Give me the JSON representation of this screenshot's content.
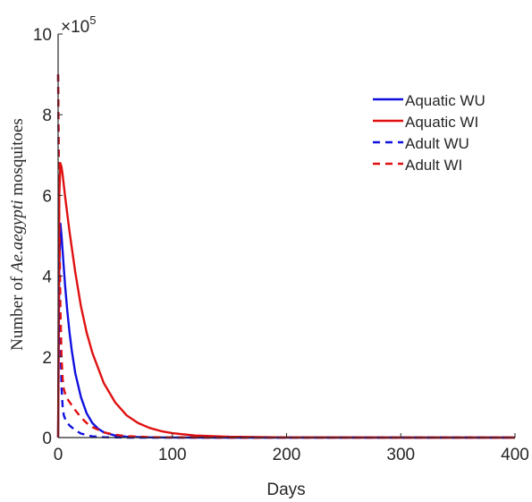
{
  "chart_data": {
    "type": "line",
    "title": "",
    "xlabel": "Days",
    "ylabel_prefix": "Number of ",
    "ylabel_italic": "Ae.aegypti",
    "ylabel_suffix": " mosquitoes",
    "y_exponent_base": "×10",
    "y_exponent_power": "5",
    "xlim": [
      0,
      400
    ],
    "ylim": [
      0,
      10
    ],
    "xticks": [
      0,
      100,
      200,
      300,
      400
    ],
    "yticks": [
      0,
      2,
      4,
      6,
      8,
      10
    ],
    "xtick_labels": [
      "0",
      "100",
      "200",
      "300",
      "400"
    ],
    "ytick_labels": [
      "0",
      "2",
      "4",
      "6",
      "8",
      "10"
    ],
    "grid": false,
    "legend_position": "top-right",
    "series": [
      {
        "name": "Aquatic WU",
        "color": "#1010e0",
        "dash": "solid",
        "x": [
          0,
          1,
          2,
          3,
          4,
          5,
          6,
          8,
          10,
          12,
          15,
          20,
          25,
          30,
          35,
          40,
          50,
          60,
          80,
          100,
          150,
          200,
          300,
          400
        ],
        "y": [
          0,
          4.2,
          5.3,
          5.0,
          4.6,
          4.2,
          3.8,
          3.15,
          2.6,
          2.15,
          1.6,
          1.0,
          0.6,
          0.36,
          0.22,
          0.13,
          0.05,
          0.02,
          0.005,
          0.001,
          0,
          0,
          0,
          0
        ]
      },
      {
        "name": "Aquatic WI",
        "color": "#e01010",
        "dash": "solid",
        "x": [
          0,
          1,
          2,
          3,
          4,
          5,
          6,
          8,
          10,
          12,
          15,
          20,
          25,
          30,
          40,
          50,
          60,
          70,
          80,
          90,
          100,
          120,
          150,
          200,
          300,
          400
        ],
        "y": [
          0,
          6.0,
          6.8,
          6.7,
          6.5,
          6.25,
          6.0,
          5.55,
          5.1,
          4.7,
          4.1,
          3.25,
          2.6,
          2.1,
          1.35,
          0.87,
          0.55,
          0.36,
          0.24,
          0.16,
          0.11,
          0.05,
          0.02,
          0.005,
          0,
          0
        ]
      },
      {
        "name": "Adult WU",
        "color": "#1010e0",
        "dash": "dashed",
        "x": [
          0,
          0.5,
          1,
          2,
          3,
          4,
          5,
          7,
          10,
          15,
          20,
          30,
          40,
          60,
          100,
          200,
          300,
          400
        ],
        "y": [
          9.0,
          7.0,
          5.0,
          2.5,
          1.25,
          0.75,
          0.55,
          0.4,
          0.3,
          0.18,
          0.1,
          0.03,
          0.01,
          0,
          0,
          0,
          0,
          0
        ]
      },
      {
        "name": "Adult WI",
        "color": "#e01010",
        "dash": "dashed",
        "x": [
          0,
          0.5,
          1,
          2,
          3,
          4,
          5,
          7,
          10,
          15,
          20,
          25,
          30,
          40,
          50,
          60,
          80,
          100,
          150,
          200,
          300,
          400
        ],
        "y": [
          9.0,
          7.2,
          5.5,
          3.2,
          2.0,
          1.45,
          1.2,
          1.0,
          0.88,
          0.68,
          0.5,
          0.36,
          0.26,
          0.13,
          0.07,
          0.035,
          0.01,
          0.003,
          0,
          0,
          0,
          0
        ]
      }
    ]
  }
}
